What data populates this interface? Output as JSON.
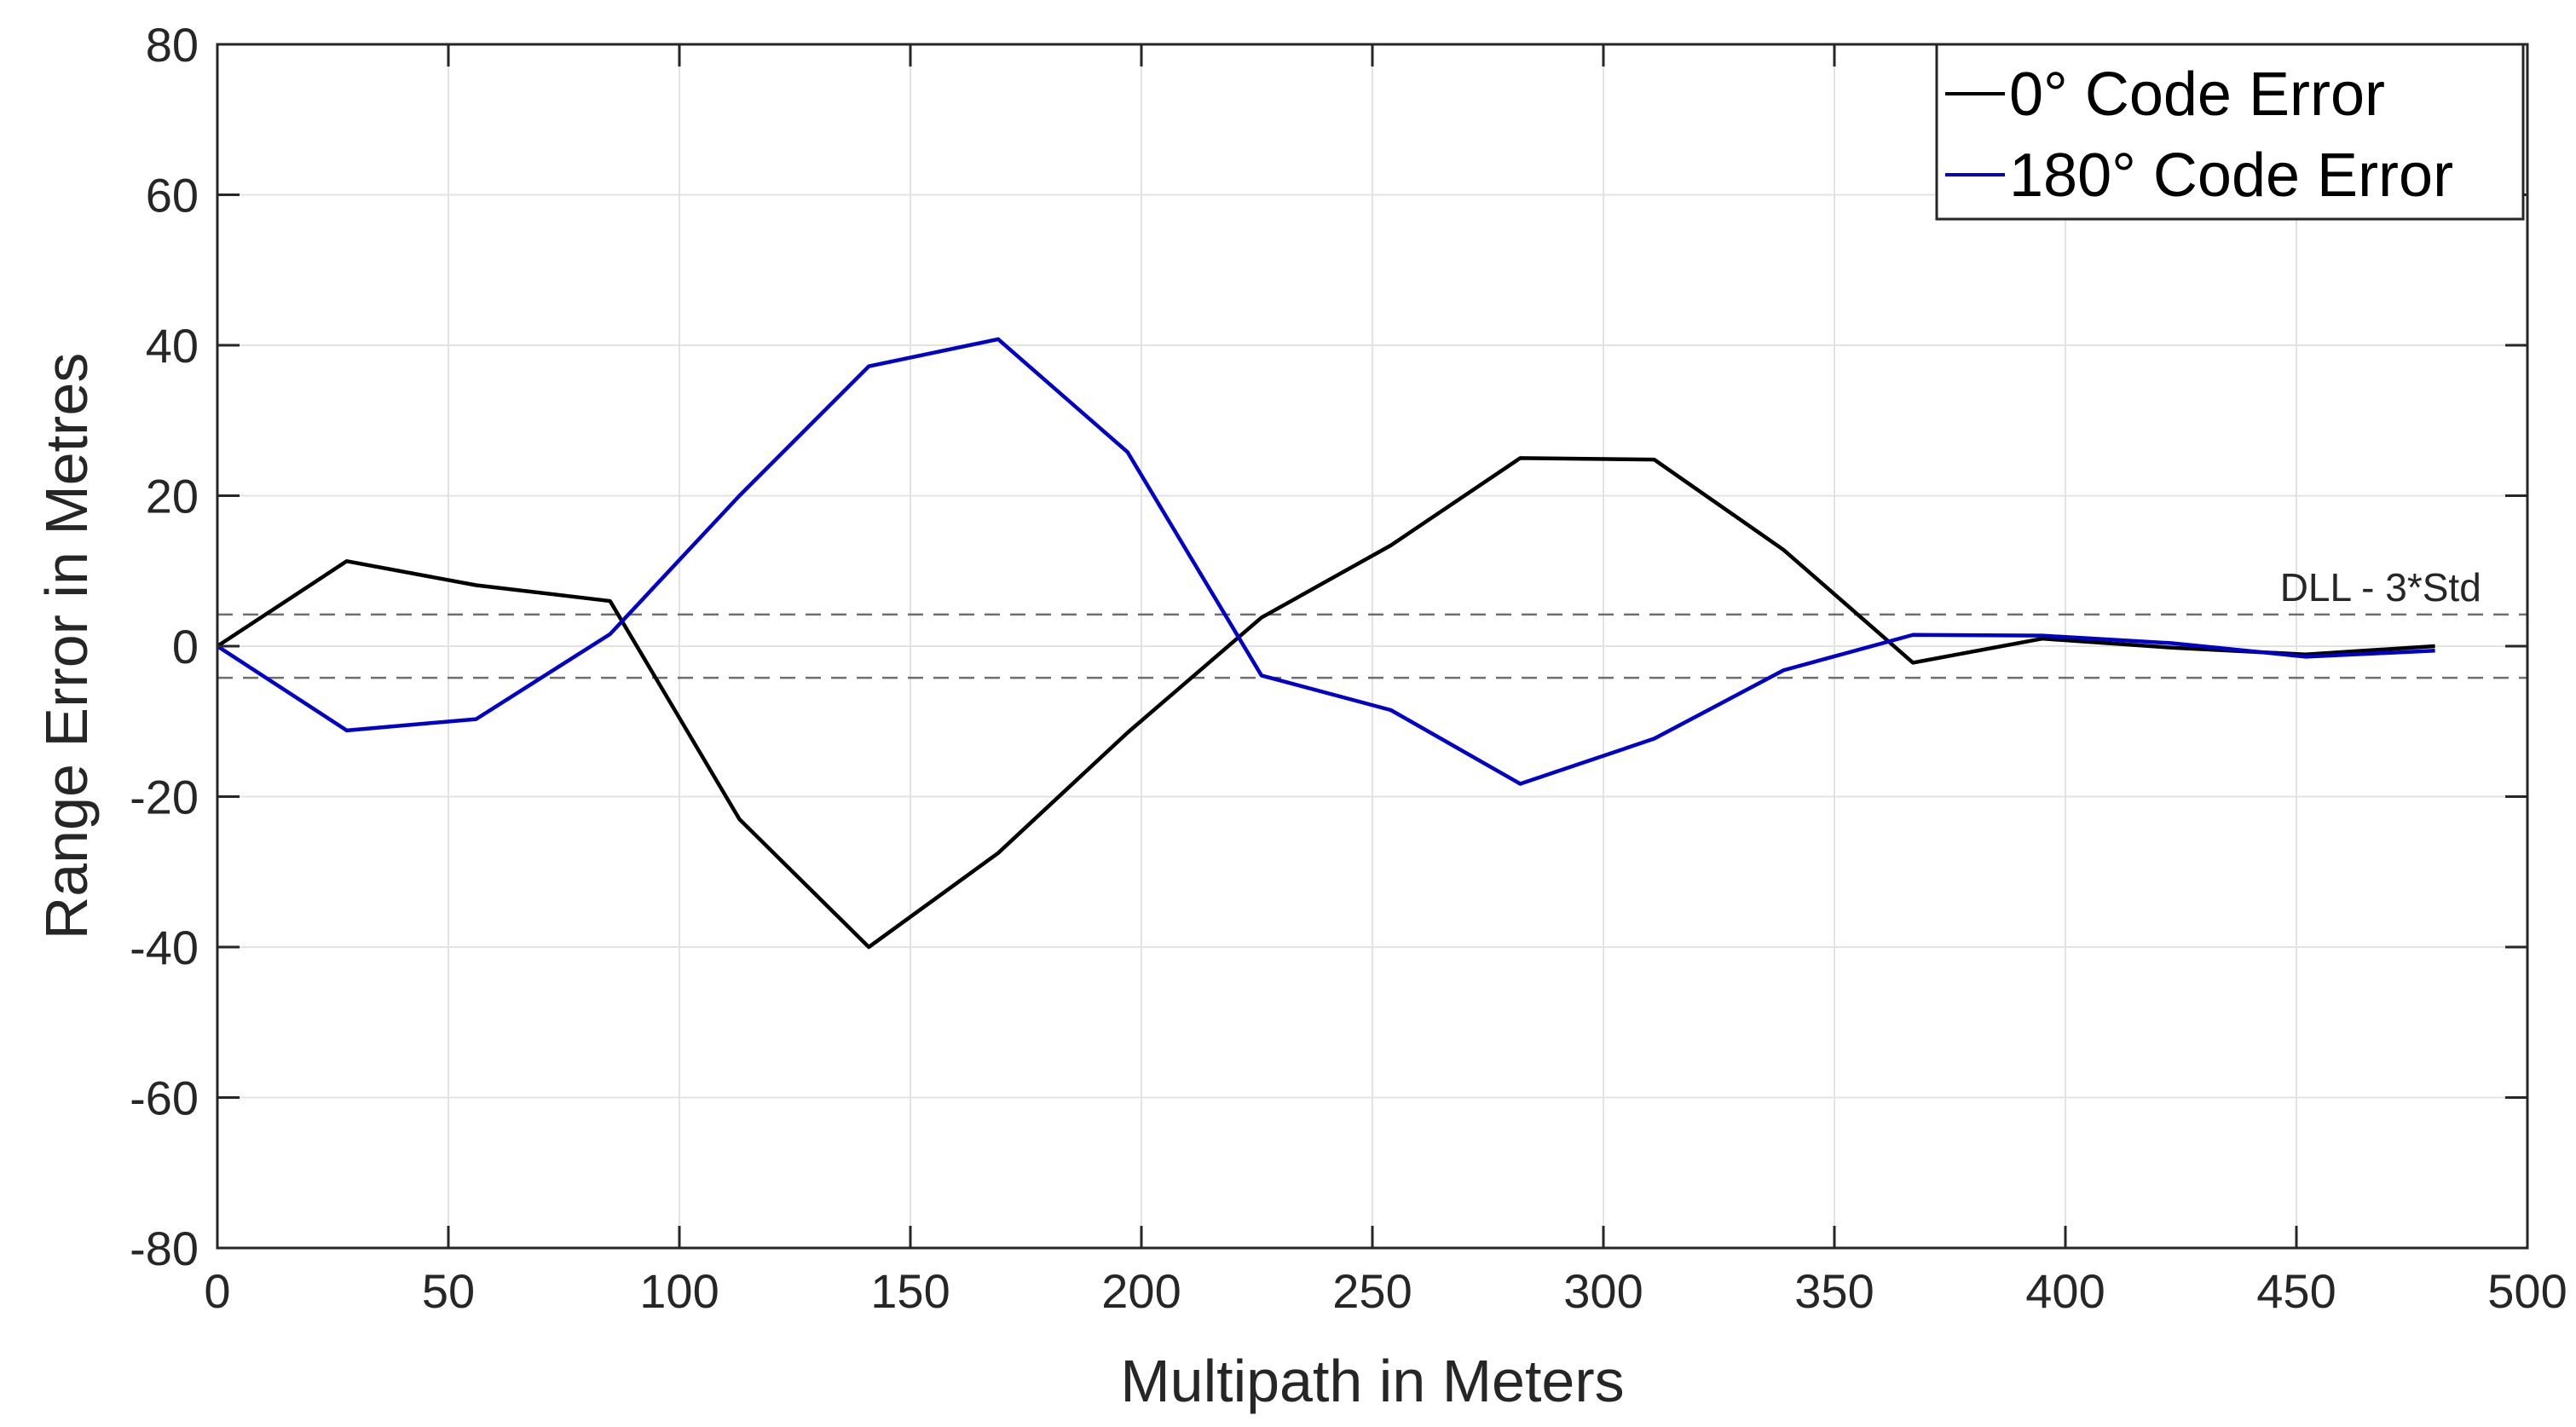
{
  "chart_data": {
    "type": "line",
    "title": "",
    "xlabel": "Multipath in Meters",
    "ylabel": "Range Error in Metres",
    "xlim": [
      0,
      500
    ],
    "ylim": [
      -80,
      80
    ],
    "xticks": [
      0,
      50,
      100,
      150,
      200,
      250,
      300,
      350,
      400,
      450,
      500
    ],
    "yticks": [
      80,
      60,
      40,
      20,
      0,
      -20,
      -40,
      -60,
      -80
    ],
    "grid": true,
    "legend_position": "top-right",
    "x": [
      0,
      28,
      56,
      85,
      113,
      141,
      169,
      197,
      226,
      254,
      282,
      311,
      339,
      367,
      395,
      423,
      452,
      480
    ],
    "series": [
      {
        "name": "0° Code Error",
        "color": "#000000",
        "values": [
          0,
          11.3,
          8.1,
          6,
          -23,
          -40,
          -27.5,
          -11.5,
          3.8,
          13.4,
          25,
          24.8,
          12.8,
          -2.2,
          1,
          -0.2,
          -1.1,
          0
        ]
      },
      {
        "name": "180° Code Error",
        "color": "#0000c8",
        "values": [
          0,
          -11.2,
          -9.7,
          1.6,
          20,
          37.2,
          40.8,
          25.8,
          -3.9,
          -8.5,
          -18.3,
          -12.3,
          -3.2,
          1.5,
          1.4,
          0.4,
          -1.4,
          -0.6
        ]
      }
    ],
    "reference_lines": [
      {
        "y": 4.2,
        "style": "dashed",
        "color": "#6e6e6e"
      },
      {
        "y": -4.2,
        "style": "dashed",
        "color": "#6e6e6e"
      }
    ],
    "annotations": [
      {
        "text": "DLL - 3*Std",
        "x": 490,
        "y": 4.2
      }
    ]
  }
}
